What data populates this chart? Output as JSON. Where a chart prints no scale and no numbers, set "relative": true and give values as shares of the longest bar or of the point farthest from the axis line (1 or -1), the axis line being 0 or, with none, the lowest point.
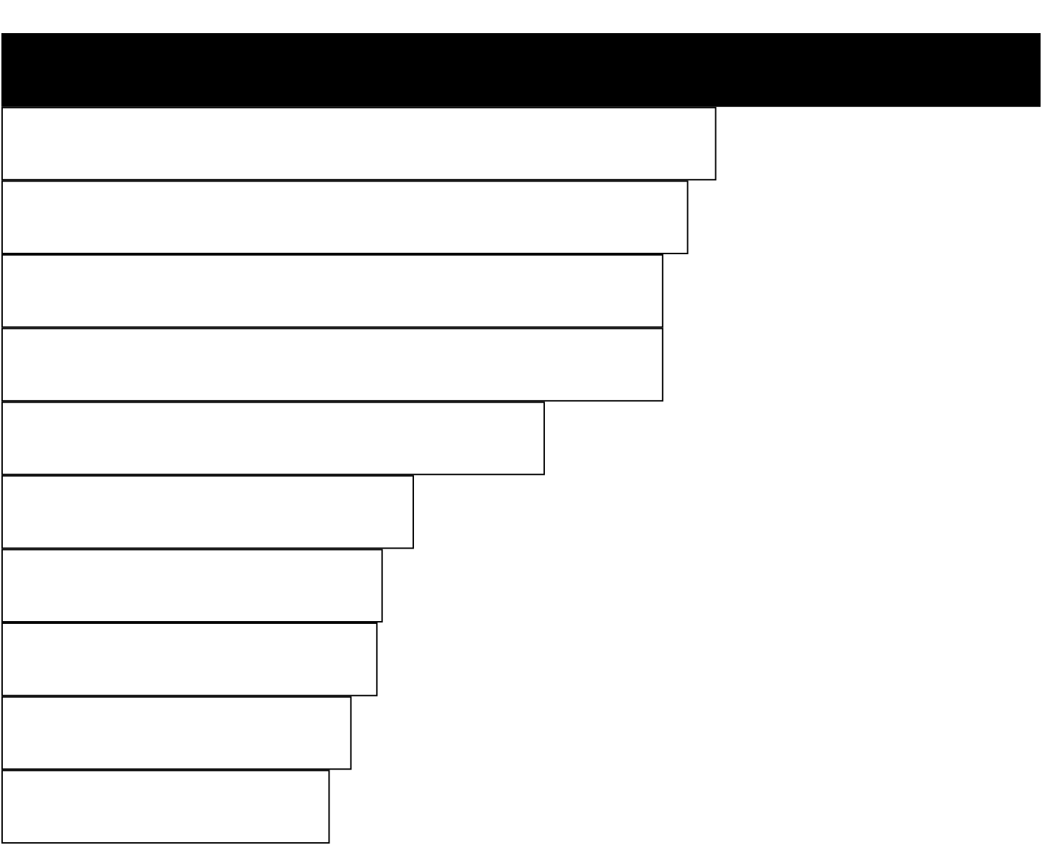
{
  "chart_data": {
    "type": "bar",
    "orientation": "horizontal",
    "relative": true,
    "categories": [
      null,
      null,
      null,
      null,
      null,
      null,
      null,
      null,
      null,
      null,
      null
    ],
    "values": [
      1,
      0.688,
      0.661,
      0.637,
      0.637,
      0.523,
      0.397,
      0.367,
      0.362,
      0.337,
      0.316
    ],
    "colors": [
      "#000000",
      "#ffffff",
      "#ffffff",
      "#ffffff",
      "#ffffff",
      "#ffffff",
      "#ffffff",
      "#ffffff",
      "#ffffff",
      "#ffffff",
      "#ffffff"
    ]
  }
}
